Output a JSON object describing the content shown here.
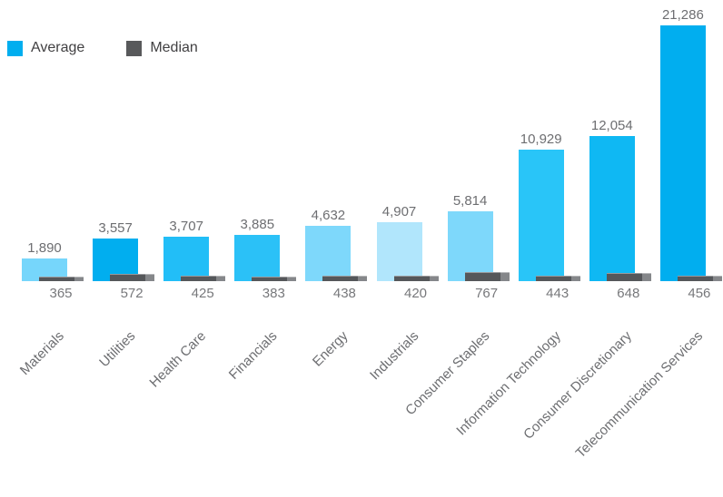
{
  "legend": {
    "items": [
      {
        "label": "Average",
        "color": "#00AEEF"
      },
      {
        "label": "Median",
        "color": "#58595B"
      }
    ]
  },
  "chart_data": {
    "type": "bar",
    "title": "",
    "xlabel": "",
    "ylabel": "",
    "categories": [
      "Materials",
      "Utilities",
      "Health Care",
      "Financials",
      "Energy",
      "Industrials",
      "Consumer Staples",
      "Information Technology",
      "Consumer Discretionary",
      "Telecommunication Services"
    ],
    "series": [
      {
        "name": "Average",
        "values": [
          1890,
          3557,
          3707,
          3885,
          4632,
          4907,
          5814,
          10929,
          12054,
          21286
        ],
        "bar_colors": [
          "#76D6FB",
          "#01AEEF",
          "#22BEF7",
          "#2BC1F7",
          "#7ED8FB",
          "#B1E6FC",
          "#7ED8FB",
          "#29C5F8",
          "#0FB8F3",
          "#01AEEF"
        ]
      },
      {
        "name": "Median",
        "values": [
          365,
          572,
          425,
          383,
          438,
          420,
          767,
          443,
          648,
          456
        ],
        "color": "#55575A",
        "edge_color": "#85878A"
      }
    ],
    "ylim": [
      0,
      21286
    ],
    "grid": false,
    "axes_visible": false,
    "legend_position": "top-left",
    "value_labels": "thousands-separated",
    "value_label_color": "#6D6E71",
    "category_label_rotation_deg": -45
  }
}
